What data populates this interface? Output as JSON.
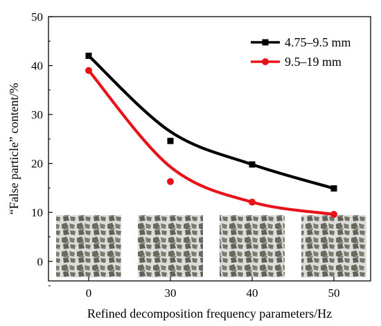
{
  "chart_data": {
    "type": "line",
    "title": "",
    "xlabel": "Refined decomposition frequency parameters/Hz",
    "ylabel": "“False particle” content/%",
    "x": [
      0,
      30,
      40,
      50
    ],
    "xticks": [
      "0",
      "30",
      "40",
      "50"
    ],
    "yticks": [
      "0",
      "10",
      "20",
      "30",
      "40",
      "50"
    ],
    "ylim": [
      -4,
      50
    ],
    "grid": false,
    "legend_position": "top-right",
    "series": [
      {
        "name": "4.75–9.5 mm",
        "color": "#000000",
        "marker": "square",
        "values": [
          42,
          24.6,
          19.8,
          14.9
        ],
        "fit_curve": [
          42,
          26.5,
          19.8,
          14.9
        ]
      },
      {
        "name": "9.5–19 mm",
        "color": "#e8121a",
        "marker": "circle",
        "values": [
          39,
          16.3,
          12.1,
          9.6
        ],
        "fit_curve": [
          39,
          19.3,
          12.1,
          9.6
        ]
      }
    ],
    "inset_photos": [
      {
        "label": "0 Hz aggregate sample",
        "icon": "aggregate-photo"
      },
      {
        "label": "30 Hz aggregate sample",
        "icon": "aggregate-photo"
      },
      {
        "label": "40 Hz aggregate sample",
        "icon": "aggregate-photo"
      },
      {
        "label": "50 Hz aggregate sample",
        "icon": "aggregate-photo"
      }
    ]
  }
}
